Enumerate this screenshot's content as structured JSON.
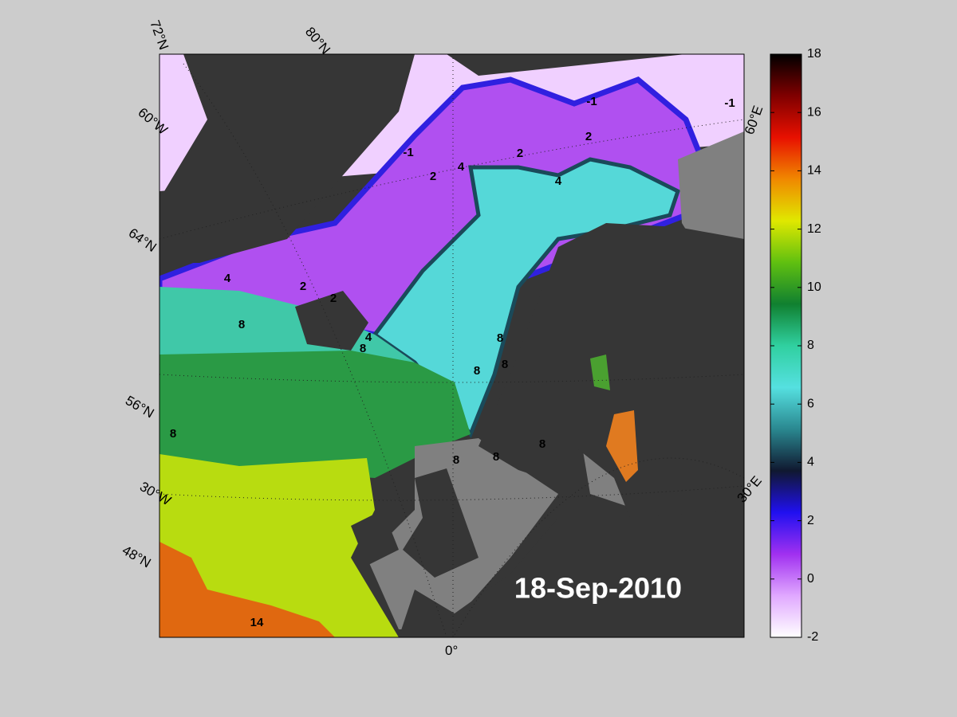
{
  "map": {
    "date": "18-Sep-2010",
    "grid_labels": [
      "72°N",
      "80°N",
      "60°W",
      "64°N",
      "56°N",
      "30°W",
      "48°N",
      "0°",
      "30°E",
      "60°E"
    ],
    "contour_labels": [
      "-1",
      "2",
      "4",
      "2",
      "4",
      "2",
      "-1",
      "-1",
      "4",
      "2",
      "2",
      "8",
      "8",
      "4",
      "8",
      "8",
      "8",
      "8",
      "8",
      "8",
      "8",
      "14"
    ]
  },
  "colorbar": {
    "lim": [
      -2,
      18
    ],
    "ticks": [
      -2,
      0,
      2,
      4,
      6,
      8,
      10,
      12,
      14,
      16,
      18
    ],
    "colormap": [
      "#ffffff",
      "#e0a8ff",
      "#a030f0",
      "#2010f0",
      "#101830",
      "#2a8890",
      "#55e0e0",
      "#30d0a0",
      "#108030",
      "#60c010",
      "#e0e800",
      "#f08800",
      "#e81000",
      "#800000",
      "#000000"
    ]
  }
}
